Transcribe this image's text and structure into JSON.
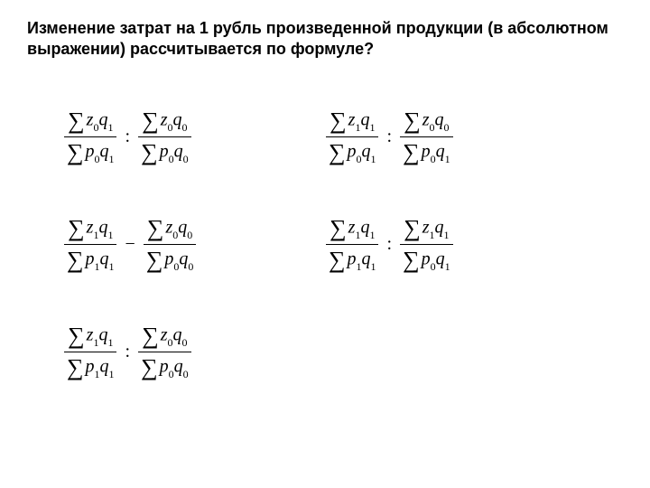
{
  "title": "Изменение затрат на 1 рубль произведенной продукции (в абсолютном выражении) рассчитывается по формуле?",
  "formulas": {
    "f1": {
      "left_num": "z0q1",
      "left_den": "p0q1",
      "op": ":",
      "right_num": "z0q0",
      "right_den": "p0q0"
    },
    "f2": {
      "left_num": "z1q1",
      "left_den": "p0q1",
      "op": ":",
      "right_num": "z0q0",
      "right_den": "p0q1"
    },
    "f3": {
      "left_num": "z1q1",
      "left_den": "p1q1",
      "op": "−",
      "right_num": "z0q0",
      "right_den": "p0q0"
    },
    "f4": {
      "left_num": "z1q1",
      "left_den": "p1q1",
      "op": ":",
      "right_num": "z1q1",
      "right_den": "p0q1"
    },
    "f5": {
      "left_num": "z1q1",
      "left_den": "p1q1",
      "op": ":",
      "right_num": "z0q0",
      "right_den": "p0q0"
    }
  },
  "styling": {
    "background": "#ffffff",
    "text_color": "#000000",
    "title_fontsize": 18,
    "formula_fontsize": 20,
    "subscript_fontsize": 12,
    "title_font": "Arial",
    "formula_font": "Times New Roman"
  }
}
